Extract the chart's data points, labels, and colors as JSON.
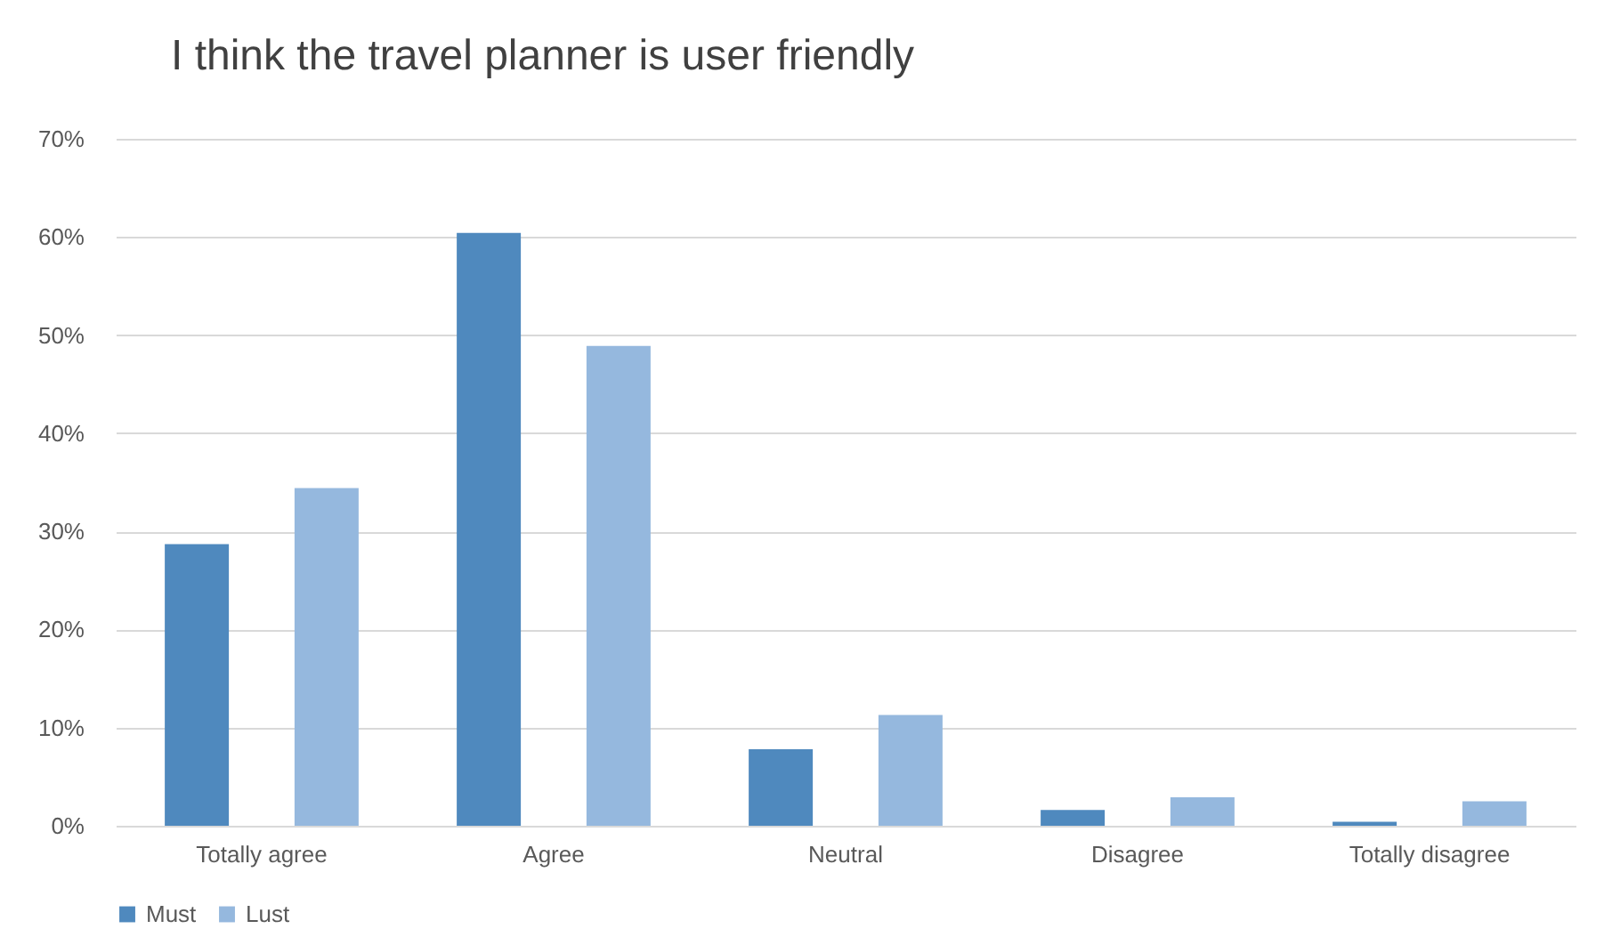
{
  "chart_data": {
    "type": "bar",
    "title": "I think the travel planner is user friendly",
    "categories": [
      "Totally agree",
      "Agree",
      "Neutral",
      "Disagree",
      "Totally disagree"
    ],
    "series": [
      {
        "name": "Must",
        "color": "#4f89be",
        "values": [
          28.7,
          60.4,
          7.8,
          1.6,
          0.4
        ]
      },
      {
        "name": "Lust",
        "color": "#95b8de",
        "values": [
          34.4,
          48.9,
          11.3,
          2.9,
          2.5
        ]
      }
    ],
    "ylim": [
      0,
      70
    ],
    "yticks": [
      {
        "value": 0,
        "label": "0%"
      },
      {
        "value": 10,
        "label": "10%"
      },
      {
        "value": 20,
        "label": "20%"
      },
      {
        "value": 30,
        "label": "30%"
      },
      {
        "value": 40,
        "label": "40%"
      },
      {
        "value": 50,
        "label": "50%"
      },
      {
        "value": 60,
        "label": "60%"
      },
      {
        "value": 70,
        "label": "70%"
      }
    ],
    "grid": "y",
    "legend": "bottom"
  }
}
